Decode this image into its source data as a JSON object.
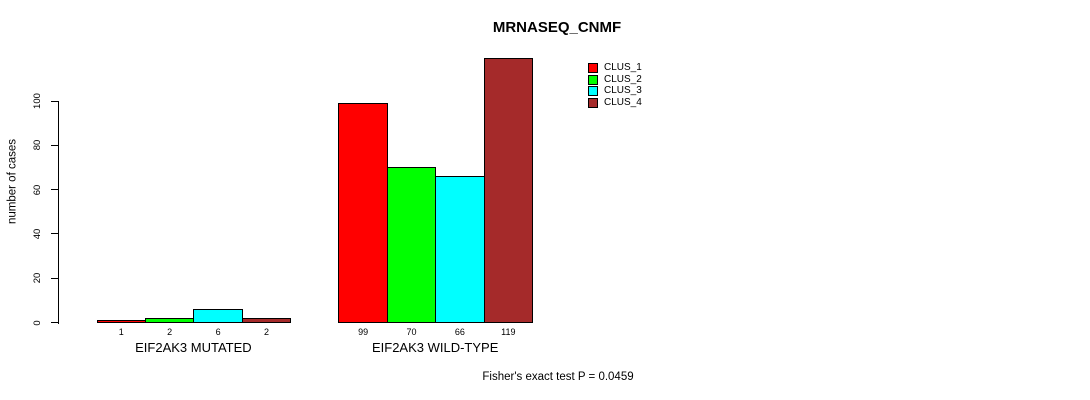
{
  "title": "MRNASEQ_CNMF",
  "footer": "Fisher's exact test P = 0.0459",
  "y_axis": {
    "label": "number of cases",
    "ticks": [
      0,
      20,
      40,
      60,
      80,
      100
    ]
  },
  "x_axis": {
    "group_labels": [
      "EIF2AK3 MUTATED",
      "EIF2AK3 WILD-TYPE"
    ]
  },
  "legend": {
    "items": [
      {
        "label": "CLUS_1",
        "color": "#ff0000"
      },
      {
        "label": "CLUS_2",
        "color": "#00ff00"
      },
      {
        "label": "CLUS_3",
        "color": "#00ffff"
      },
      {
        "label": "CLUS_4",
        "color": "#a52a2a"
      }
    ]
  },
  "chart_data": {
    "type": "bar",
    "title": "MRNASEQ_CNMF",
    "categories": [
      "EIF2AK3 MUTATED",
      "EIF2AK3 WILD-TYPE"
    ],
    "series": [
      {
        "name": "CLUS_1",
        "color": "#ff0000",
        "values": [
          1,
          99
        ]
      },
      {
        "name": "CLUS_2",
        "color": "#00ff00",
        "values": [
          2,
          70
        ]
      },
      {
        "name": "CLUS_3",
        "color": "#00ffff",
        "values": [
          6,
          66
        ]
      },
      {
        "name": "CLUS_4",
        "color": "#a52a2a",
        "values": [
          2,
          119
        ]
      }
    ],
    "xlabel": "",
    "ylabel": "number of cases",
    "ylim": [
      0,
      100
    ],
    "yticks": [
      0,
      20,
      40,
      60,
      80,
      100
    ],
    "bar_value_labels_shown": true,
    "grid": false,
    "legend_position": "top-right",
    "annotation": "Fisher's exact test P = 0.0459"
  }
}
